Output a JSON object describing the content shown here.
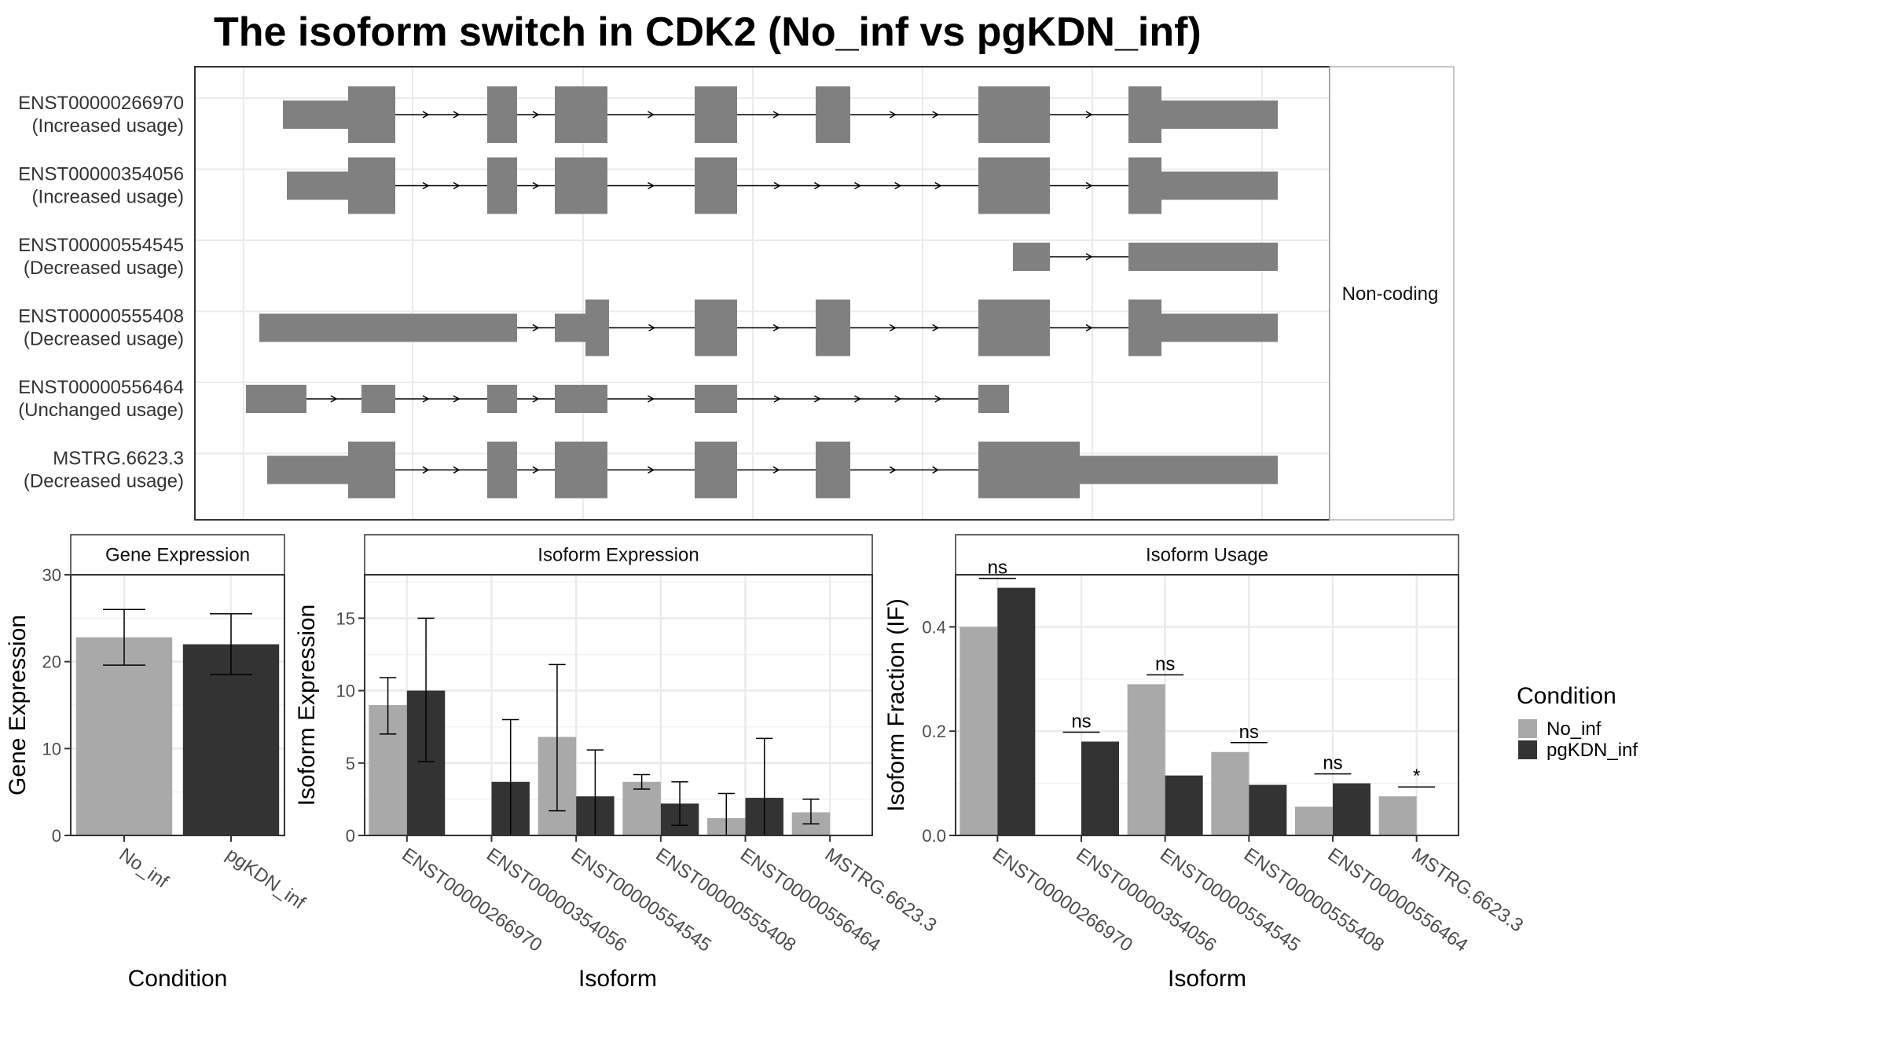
{
  "title": "The isoform switch in CDK2 (No_inf vs pgKDN_inf)",
  "colors": {
    "no_inf": "#a9a9a9",
    "pgkdn_inf": "#333333",
    "exon": "#808080",
    "grid": "#ebebeb"
  },
  "chart_data": [
    {
      "type": "gene_structure",
      "facet_label": "Non-coding",
      "rows": [
        {
          "id": "ENST00000266970",
          "label": "(Increased usage)"
        },
        {
          "id": "ENST00000354056",
          "label": "(Increased usage)"
        },
        {
          "id": "ENST00000554545",
          "label": "(Decreased usage)"
        },
        {
          "id": "ENST00000555408",
          "label": "(Decreased usage)"
        },
        {
          "id": "ENST00000556464",
          "label": "(Unchanged usage)"
        },
        {
          "id": "MSTRG.6623.3",
          "label": "(Decreased usage)"
        }
      ]
    },
    {
      "type": "bar",
      "title": "Gene Expression",
      "xlabel": "Condition",
      "ylabel": "Gene Expression",
      "ylim": [
        0,
        30
      ],
      "yticks": [
        "0",
        "10",
        "20",
        "30"
      ],
      "categories": [
        "No_inf",
        "pgKDN_inf"
      ],
      "values": [
        22.8,
        22.0
      ],
      "error_low": [
        19.6,
        18.5
      ],
      "error_high": [
        26.0,
        25.5
      ]
    },
    {
      "type": "bar",
      "title": "Isoform Expression",
      "xlabel": "Isoform",
      "ylabel": "Isoform Expression",
      "ylim": [
        0,
        18
      ],
      "yticks": [
        "0",
        "5",
        "10",
        "15"
      ],
      "categories": [
        "ENST00000266970",
        "ENST00000354056",
        "ENST00000554545",
        "ENST00000555408",
        "ENST00000556464",
        "MSTRG.6623.3"
      ],
      "series": [
        {
          "values": [
            9.0,
            0.0,
            6.8,
            3.7,
            1.2,
            1.6
          ],
          "error_low": [
            7.0,
            0.0,
            1.7,
            3.2,
            0.0,
            0.8
          ],
          "error_high": [
            10.9,
            0.0,
            11.8,
            4.2,
            2.9,
            2.5
          ]
        },
        {
          "values": [
            10.0,
            3.7,
            2.7,
            2.2,
            2.6,
            0.0
          ],
          "error_low": [
            5.1,
            0.0,
            0.0,
            0.7,
            0.0,
            0.0
          ],
          "error_high": [
            15.0,
            8.0,
            5.9,
            3.7,
            6.7,
            0.0
          ]
        }
      ]
    },
    {
      "type": "bar",
      "title": "Isoform Usage",
      "xlabel": "Isoform",
      "ylabel": "Isoform Fraction (IF)",
      "ylim": [
        0,
        0.5
      ],
      "yticks": [
        "0.0",
        "0.2",
        "0.4"
      ],
      "categories": [
        "ENST00000266970",
        "ENST00000354056",
        "ENST00000554545",
        "ENST00000555408",
        "ENST00000556464",
        "MSTRG.6623.3"
      ],
      "series": [
        {
          "values": [
            0.4,
            0.0,
            0.29,
            0.16,
            0.055,
            0.075
          ]
        },
        {
          "values": [
            0.475,
            0.18,
            0.115,
            0.097,
            0.1,
            0.0
          ]
        }
      ],
      "significance": [
        "ns",
        "ns",
        "ns",
        "ns",
        "ns",
        "*"
      ]
    }
  ],
  "legend": {
    "title": "Condition",
    "items": [
      "No_inf",
      "pgKDN_inf"
    ],
    "placement": "right"
  }
}
